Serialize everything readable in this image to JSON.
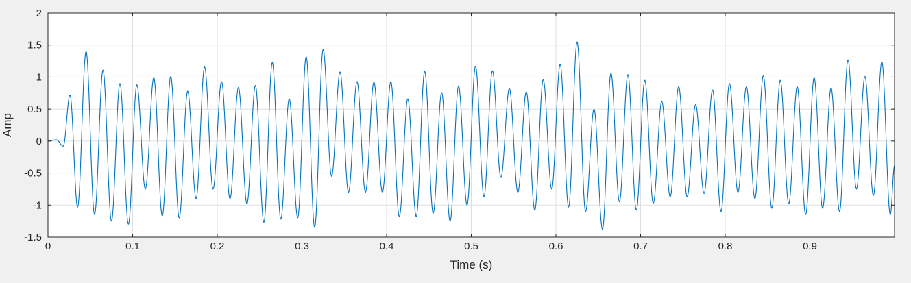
{
  "chart_data": {
    "type": "line",
    "title": "",
    "xlabel": "Time (s)",
    "ylabel": "Amp",
    "xlim": [
      0,
      1
    ],
    "ylim": [
      -1.5,
      2
    ],
    "xticks": [
      0,
      0.1,
      0.2,
      0.3,
      0.4,
      0.5,
      0.6,
      0.7,
      0.8,
      0.9
    ],
    "xtick_labels": [
      "0",
      "0.1",
      "0.2",
      "0.3",
      "0.4",
      "0.5",
      "0.6",
      "0.7",
      "0.8",
      "0.9"
    ],
    "yticks": [
      -1.5,
      -1,
      -0.5,
      0,
      0.5,
      1,
      1.5,
      2
    ],
    "ytick_labels": [
      "-1.5",
      "-1",
      "-0.5",
      "0",
      "0.5",
      "1",
      "1.5",
      "2"
    ],
    "grid": true,
    "legend": "none",
    "colors": {
      "figure_background": "#f0f0f0",
      "axes_background": "#ffffff",
      "grid": "#dfdfdf",
      "axes": "#262626",
      "line": "#0072bd"
    },
    "series": [
      {
        "approx_dominant_frequency_hz": 49,
        "sample_rate_hz": 1000,
        "approx_start_time_s": 0.02,
        "points": [
          [
            0.0,
            0.0
          ],
          [
            0.01,
            0.02
          ],
          [
            0.018,
            -0.08
          ],
          [
            0.026,
            0.72
          ],
          [
            0.035,
            -1.03
          ],
          [
            0.045,
            1.4
          ],
          [
            0.055,
            -1.15
          ],
          [
            0.065,
            1.11
          ],
          [
            0.075,
            -1.25
          ],
          [
            0.085,
            0.9
          ],
          [
            0.095,
            -1.3
          ],
          [
            0.105,
            0.88
          ],
          [
            0.115,
            -0.75
          ],
          [
            0.125,
            0.99
          ],
          [
            0.135,
            -1.17
          ],
          [
            0.145,
            1.01
          ],
          [
            0.155,
            -1.2
          ],
          [
            0.165,
            0.78
          ],
          [
            0.175,
            -0.9
          ],
          [
            0.185,
            1.16
          ],
          [
            0.195,
            -0.75
          ],
          [
            0.205,
            0.93
          ],
          [
            0.215,
            -0.9
          ],
          [
            0.225,
            0.84
          ],
          [
            0.235,
            -0.98
          ],
          [
            0.245,
            0.87
          ],
          [
            0.255,
            -1.27
          ],
          [
            0.265,
            1.23
          ],
          [
            0.275,
            -1.22
          ],
          [
            0.285,
            0.66
          ],
          [
            0.295,
            -1.2
          ],
          [
            0.305,
            1.32
          ],
          [
            0.315,
            -1.35
          ],
          [
            0.325,
            1.43
          ],
          [
            0.335,
            -0.55
          ],
          [
            0.345,
            1.08
          ],
          [
            0.355,
            -0.8
          ],
          [
            0.365,
            0.93
          ],
          [
            0.375,
            -0.8
          ],
          [
            0.385,
            0.92
          ],
          [
            0.395,
            -0.8
          ],
          [
            0.405,
            0.93
          ],
          [
            0.415,
            -1.18
          ],
          [
            0.425,
            0.66
          ],
          [
            0.435,
            -1.18
          ],
          [
            0.445,
            1.09
          ],
          [
            0.455,
            -1.13
          ],
          [
            0.465,
            0.76
          ],
          [
            0.475,
            -1.25
          ],
          [
            0.485,
            0.86
          ],
          [
            0.495,
            -1.0
          ],
          [
            0.505,
            1.17
          ],
          [
            0.515,
            -0.87
          ],
          [
            0.525,
            1.1
          ],
          [
            0.535,
            -0.57
          ],
          [
            0.545,
            0.82
          ],
          [
            0.555,
            -0.8
          ],
          [
            0.565,
            0.77
          ],
          [
            0.575,
            -1.08
          ],
          [
            0.585,
            0.96
          ],
          [
            0.595,
            -0.75
          ],
          [
            0.605,
            1.2
          ],
          [
            0.615,
            -1.03
          ],
          [
            0.625,
            1.55
          ],
          [
            0.635,
            -1.1
          ],
          [
            0.645,
            0.5
          ],
          [
            0.655,
            -1.38
          ],
          [
            0.665,
            1.06
          ],
          [
            0.675,
            -0.95
          ],
          [
            0.685,
            1.04
          ],
          [
            0.695,
            -1.08
          ],
          [
            0.705,
            0.95
          ],
          [
            0.715,
            -0.97
          ],
          [
            0.725,
            0.62
          ],
          [
            0.735,
            -0.87
          ],
          [
            0.745,
            0.85
          ],
          [
            0.755,
            -0.87
          ],
          [
            0.765,
            0.57
          ],
          [
            0.775,
            -0.82
          ],
          [
            0.785,
            0.8
          ],
          [
            0.795,
            -1.1
          ],
          [
            0.805,
            0.9
          ],
          [
            0.815,
            -0.8
          ],
          [
            0.825,
            0.85
          ],
          [
            0.835,
            -0.9
          ],
          [
            0.845,
            1.02
          ],
          [
            0.855,
            -1.05
          ],
          [
            0.865,
            0.95
          ],
          [
            0.875,
            -0.98
          ],
          [
            0.885,
            0.85
          ],
          [
            0.895,
            -1.15
          ],
          [
            0.905,
            0.99
          ],
          [
            0.915,
            -1.05
          ],
          [
            0.925,
            0.83
          ],
          [
            0.935,
            -1.1
          ],
          [
            0.945,
            1.27
          ],
          [
            0.955,
            -0.75
          ],
          [
            0.965,
            1.01
          ],
          [
            0.975,
            -0.85
          ],
          [
            0.985,
            1.24
          ],
          [
            0.995,
            -1.15
          ],
          [
            1.0,
            -0.38
          ]
        ]
      }
    ]
  }
}
